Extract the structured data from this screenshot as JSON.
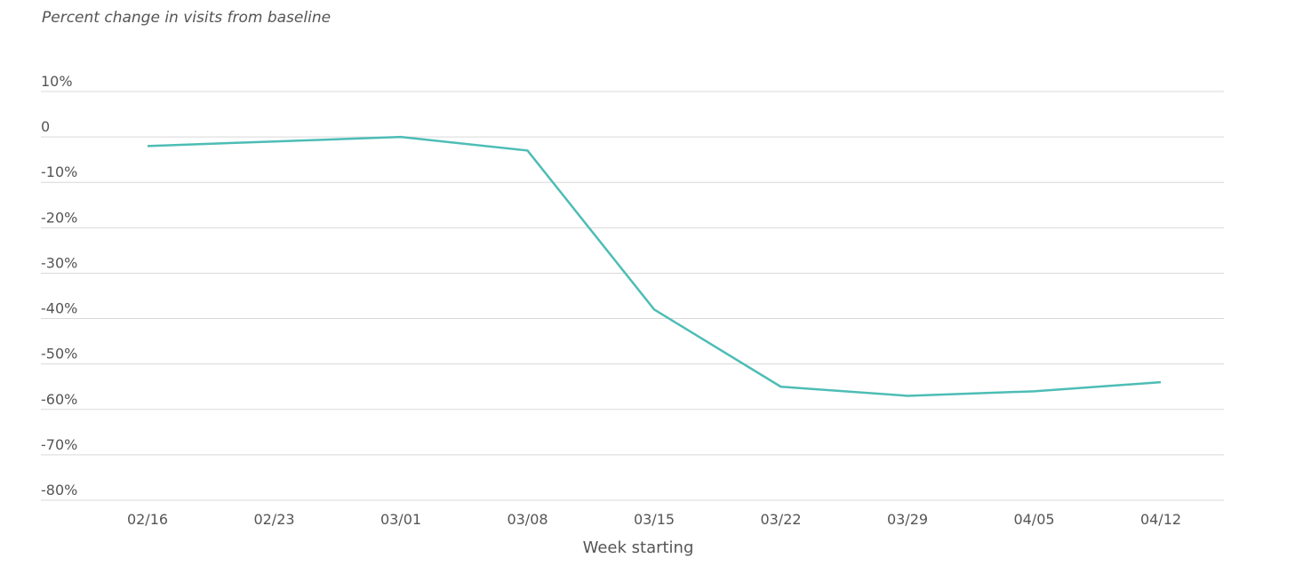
{
  "chart_data": {
    "type": "line",
    "title": "Percent change in visits from baseline",
    "x_label": "Week starting",
    "categories": [
      "02/16",
      "02/23",
      "03/01",
      "03/08",
      "03/15",
      "03/22",
      "03/29",
      "04/05",
      "04/12"
    ],
    "series": [
      {
        "name": "Visits",
        "color": "#4dbdb5",
        "values": [
          -2,
          -1,
          0,
          -3,
          -38,
          -55,
          -57,
          -56,
          -54
        ]
      }
    ],
    "ylim": [
      -80,
      10
    ],
    "yticks": [
      {
        "value": 10,
        "label": "10%"
      },
      0,
      {
        "value": -10,
        "label": "-10%"
      },
      {
        "value": -20,
        "label": "-20%"
      },
      {
        "value": -30,
        "label": "-30%"
      },
      {
        "value": -40,
        "label": "-40%"
      },
      {
        "value": -50,
        "label": "-50%"
      },
      {
        "value": -60,
        "label": "-60%"
      },
      {
        "value": -70,
        "label": "-70%"
      },
      {
        "value": -80,
        "label": "-80%"
      }
    ],
    "grid": true
  }
}
